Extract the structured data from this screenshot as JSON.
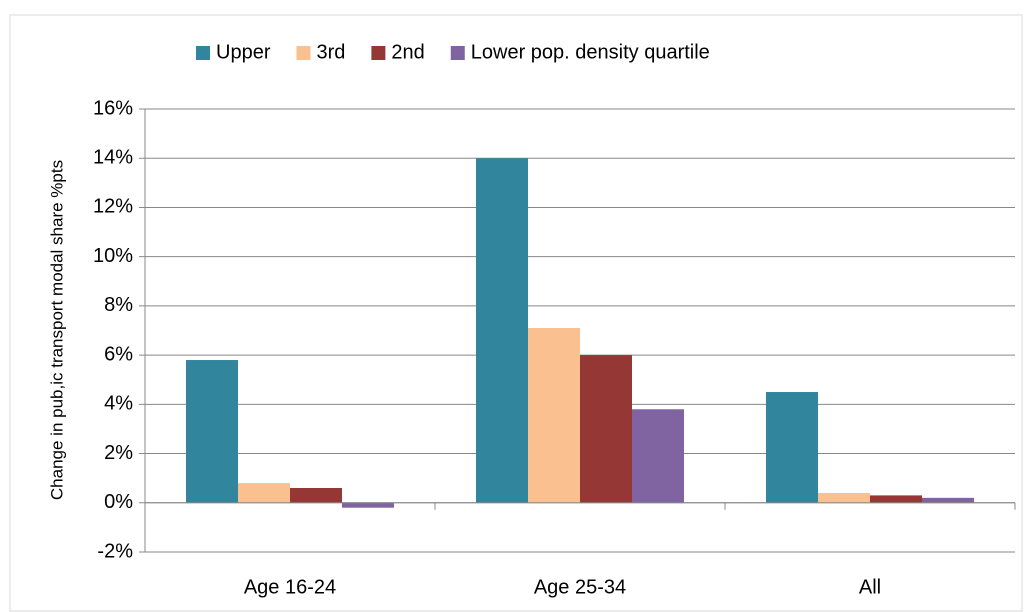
{
  "chart_data": {
    "type": "bar",
    "y_label": "Change in pub,ic transport modal share %pts",
    "categories": [
      "Age 16-24",
      "Age 25-34",
      "All"
    ],
    "series": [
      {
        "name": "Upper",
        "color": "#31859c",
        "values": [
          5.8,
          14,
          4.5
        ]
      },
      {
        "name": "3rd",
        "color": "#fac090",
        "values": [
          0.8,
          7.1,
          0.4
        ]
      },
      {
        "name": "2nd",
        "color": "#953735",
        "values": [
          0.6,
          6.0,
          0.3
        ]
      },
      {
        "name": "Lower pop. density quartile",
        "color": "#8064a2",
        "values": [
          -0.2,
          3.8,
          0.2
        ]
      }
    ],
    "ylim": [
      -2,
      16
    ],
    "yticks": [
      {
        "value": -2,
        "label": "-2%"
      },
      {
        "value": 0,
        "label": "0%"
      },
      {
        "value": 2,
        "label": "2%"
      },
      {
        "value": 4,
        "label": "4%"
      },
      {
        "value": 6,
        "label": "6%"
      },
      {
        "value": 8,
        "label": "8%"
      },
      {
        "value": 10,
        "label": "10%"
      },
      {
        "value": 12,
        "label": "12%"
      },
      {
        "value": 14,
        "label": "14%"
      },
      {
        "value": 16,
        "label": "16%"
      }
    ],
    "grid": true,
    "legend": "top"
  }
}
